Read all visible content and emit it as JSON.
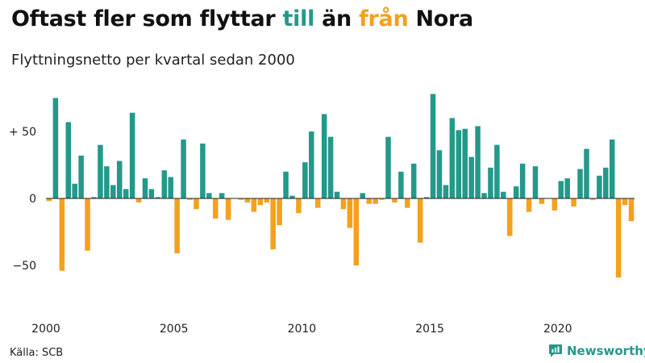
{
  "header": {
    "title_part1": "Oftast fler som flyttar ",
    "title_till": "till",
    "title_part2": " än ",
    "title_fran": "från",
    "title_part3": " Nora",
    "subtitle": "Flyttningsnetto per kvartal sedan 2000"
  },
  "colors": {
    "positive": "#24998a",
    "negative": "#f5a01e",
    "zero_line": "#222222"
  },
  "footer": {
    "source": "Källa: SCB",
    "brand": "Newsworthy",
    "brand_icon": "newsworthy-logo-icon"
  },
  "chart_data": {
    "type": "bar",
    "title": "Oftast fler som flyttar till än från Nora",
    "subtitle": "Flyttningsnetto per kvartal sedan 2000",
    "xlabel": "",
    "ylabel": "",
    "start_year": 2000,
    "ylim": [
      -70,
      80
    ],
    "y_ticks": [
      50,
      0,
      -50
    ],
    "y_tick_labels": [
      "+ 50",
      "0",
      "−50"
    ],
    "x_tick_labels": [
      "2000",
      "2005",
      "2010",
      "2015",
      "2020"
    ],
    "grid": false,
    "values": [
      -2,
      75,
      -54,
      57,
      11,
      32,
      -39,
      1,
      40,
      24,
      10,
      28,
      7,
      64,
      -3,
      15,
      7,
      1,
      21,
      16,
      -41,
      44,
      -1,
      -8,
      41,
      4,
      -15,
      4,
      -16,
      0,
      -1,
      -3,
      -10,
      -5,
      -3,
      -38,
      -20,
      20,
      2,
      -11,
      27,
      50,
      -7,
      63,
      46,
      5,
      -8,
      -22,
      -50,
      4,
      -4,
      -4,
      -1,
      46,
      -3,
      20,
      -7,
      26,
      -33,
      1,
      78,
      36,
      10,
      60,
      51,
      52,
      31,
      54,
      4,
      23,
      40,
      5,
      -28,
      9,
      26,
      -10,
      24,
      -4,
      0,
      -9,
      13,
      15,
      -6,
      22,
      37,
      -1,
      17,
      23,
      44,
      -59,
      -5,
      -17
    ]
  }
}
